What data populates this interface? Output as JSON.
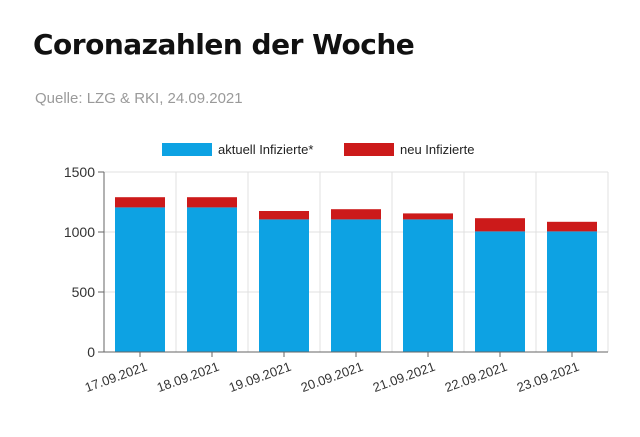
{
  "header": {
    "title": "Coronazahlen der Woche",
    "source": "Quelle: LZG & RKI, 24.09.2021"
  },
  "chart_data": {
    "type": "bar",
    "stacked": true,
    "categories": [
      "17.09.2021",
      "18.09.2021",
      "19.09.2021",
      "20.09.2021",
      "21.09.2021",
      "22.09.2021",
      "23.09.2021"
    ],
    "series": [
      {
        "name": "aktuell Infizierte*",
        "color": "#0da2e3",
        "values": [
          1205,
          1205,
          1105,
          1105,
          1105,
          1005,
          1005
        ]
      },
      {
        "name": "neu Infizierte",
        "color": "#cc1a1a",
        "values": [
          85,
          85,
          70,
          85,
          50,
          110,
          80
        ]
      }
    ],
    "y_ticks": [
      0,
      500,
      1000,
      1500
    ],
    "ylim": [
      0,
      1500
    ],
    "grid": true,
    "legend_position": "top-center"
  }
}
